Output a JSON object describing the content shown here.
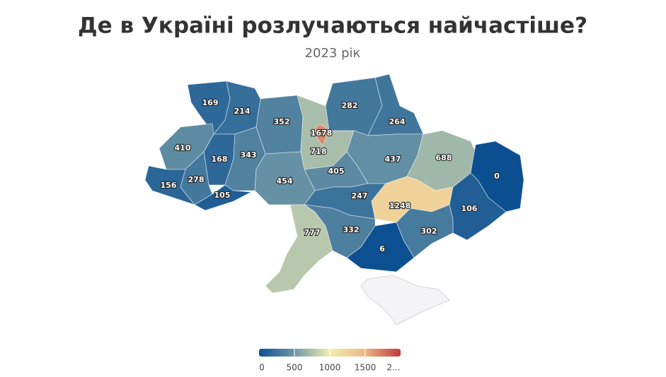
{
  "chart_data": {
    "type": "choropleth",
    "title": "Де в Україні розлучаються найчастіше?",
    "subtitle": "2023 рік",
    "values": [
      169,
      214,
      352,
      1678,
      718,
      282,
      264,
      410,
      168,
      343,
      405,
      437,
      688,
      0,
      156,
      278,
      105,
      454,
      247,
      1248,
      106,
      777,
      332,
      302,
      6
    ],
    "colorscale": [
      [
        0,
        "#0b4f91"
      ],
      [
        500,
        "#6f98a6"
      ],
      [
        1000,
        "#f2eeb0"
      ],
      [
        1500,
        "#ecb684"
      ],
      [
        2000,
        "#c03a3a"
      ]
    ],
    "legend_range": [
      0,
      2000
    ],
    "legend_ticks": [
      0,
      500,
      1000,
      1500,
      {
        "value": 2000,
        "label": "2..."
      }
    ]
  }
}
